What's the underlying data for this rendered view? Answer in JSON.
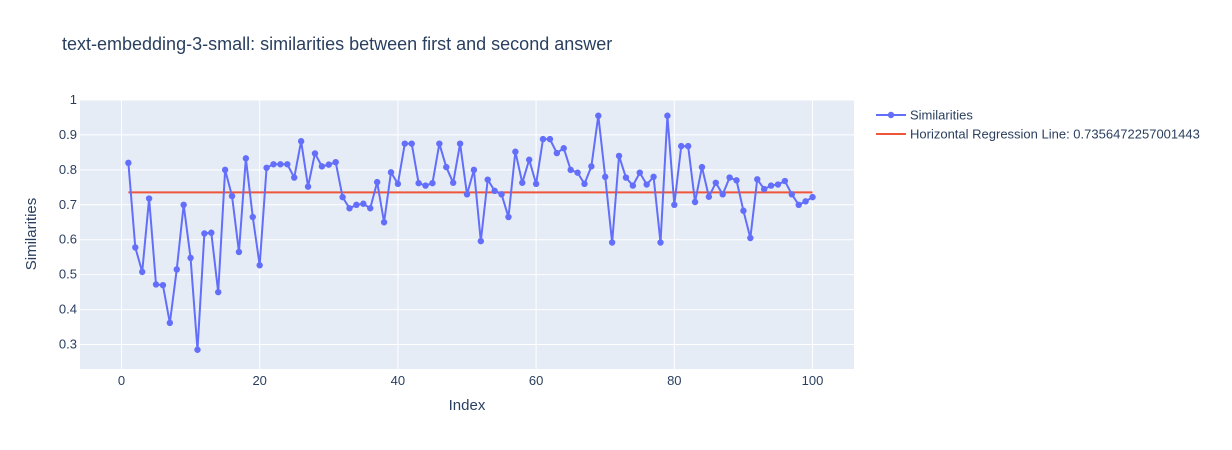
{
  "chart_data": {
    "type": "line",
    "title": "text-embedding-3-small: similarities between first and second answer",
    "xlabel": "Index",
    "ylabel": "Similarities",
    "xlim": [
      -6,
      106
    ],
    "ylim": [
      0.23,
      1.0
    ],
    "xticks": [
      0,
      20,
      40,
      60,
      80,
      100
    ],
    "yticks": [
      0.3,
      0.4,
      0.5,
      0.6,
      0.7,
      0.8,
      0.9,
      1
    ],
    "ytick_labels": [
      "0.3",
      "0.4",
      "0.5",
      "0.6",
      "0.7",
      "0.8",
      "0.9",
      "1"
    ],
    "grid": true,
    "legend_position": "top-right",
    "colors": {
      "plot_bg": "#e5ecf6",
      "grid": "#ffffff",
      "series": "#636efa",
      "regression": "#ef553b"
    },
    "series": [
      {
        "name": "Similarities",
        "mode": "lines+markers",
        "x": [
          1,
          2,
          3,
          4,
          5,
          6,
          7,
          8,
          9,
          10,
          11,
          12,
          13,
          14,
          15,
          16,
          17,
          18,
          19,
          20,
          21,
          22,
          23,
          24,
          25,
          26,
          27,
          28,
          29,
          30,
          31,
          32,
          33,
          34,
          35,
          36,
          37,
          38,
          39,
          40,
          41,
          42,
          43,
          44,
          45,
          46,
          47,
          48,
          49,
          50,
          51,
          52,
          53,
          54,
          55,
          56,
          57,
          58,
          59,
          60,
          61,
          62,
          63,
          64,
          65,
          66,
          67,
          68,
          69,
          70,
          71,
          72,
          73,
          74,
          75,
          76,
          77,
          78,
          79,
          80,
          81,
          82,
          83,
          84,
          85,
          86,
          87,
          88,
          89,
          90,
          91,
          92,
          93,
          94,
          95,
          96,
          97,
          98,
          99,
          100
        ],
        "y": [
          0.82,
          0.578,
          0.508,
          0.718,
          0.472,
          0.47,
          0.362,
          0.515,
          0.7,
          0.548,
          0.285,
          0.618,
          0.62,
          0.45,
          0.8,
          0.725,
          0.565,
          0.833,
          0.665,
          0.527,
          0.806,
          0.816,
          0.816,
          0.816,
          0.778,
          0.882,
          0.752,
          0.847,
          0.81,
          0.815,
          0.822,
          0.722,
          0.69,
          0.7,
          0.703,
          0.69,
          0.765,
          0.65,
          0.793,
          0.76,
          0.875,
          0.875,
          0.762,
          0.755,
          0.762,
          0.875,
          0.808,
          0.763,
          0.875,
          0.73,
          0.8,
          0.596,
          0.772,
          0.74,
          0.73,
          0.665,
          0.852,
          0.763,
          0.829,
          0.76,
          0.888,
          0.888,
          0.848,
          0.862,
          0.8,
          0.792,
          0.76,
          0.81,
          0.955,
          0.78,
          0.592,
          0.84,
          0.778,
          0.755,
          0.792,
          0.758,
          0.78,
          0.592,
          0.955,
          0.7,
          0.868,
          0.868,
          0.708,
          0.808,
          0.723,
          0.763,
          0.73,
          0.778,
          0.77,
          0.683,
          0.605,
          0.773,
          0.745,
          0.755,
          0.758,
          0.768,
          0.73,
          0.7,
          0.71,
          0.722
        ]
      },
      {
        "name": "Horizontal Regression Line: 0.7356472257001443",
        "mode": "lines",
        "x": [
          1,
          100
        ],
        "y": [
          0.7356472257001443,
          0.7356472257001443
        ]
      }
    ]
  }
}
